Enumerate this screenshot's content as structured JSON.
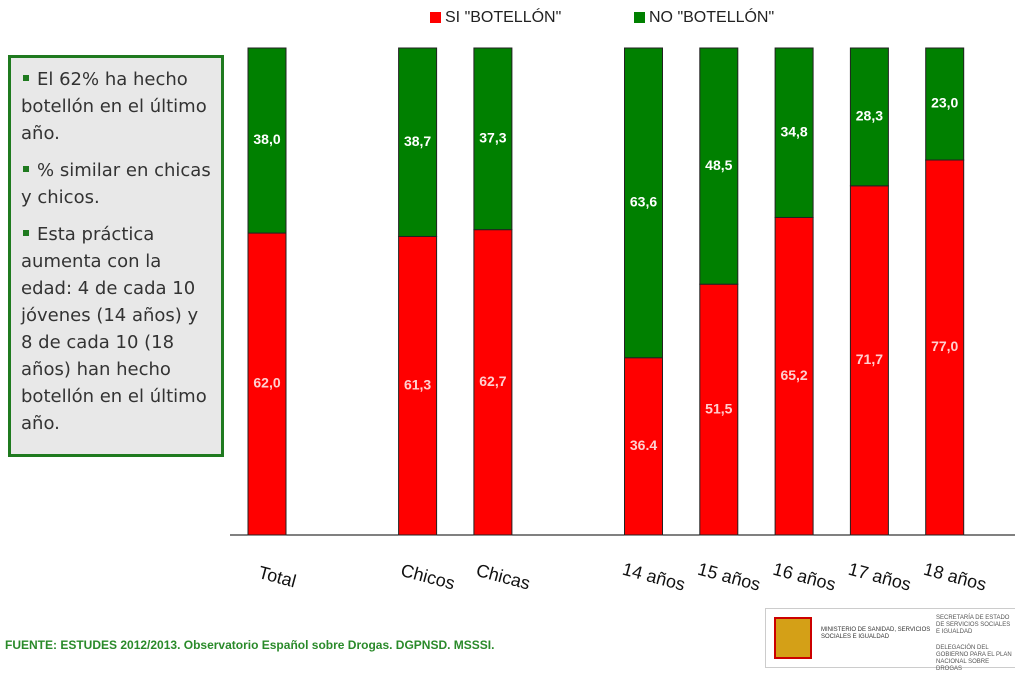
{
  "chart_data": {
    "type": "bar",
    "stacked": true,
    "categories": [
      "Total",
      null,
      "Chicos",
      "Chicas",
      null,
      "14 años",
      "15 años",
      "16 años",
      "17 años",
      "18 años"
    ],
    "series": [
      {
        "name": "SI \"BOTELLÓN\"",
        "color": "#ff0000",
        "values": [
          62.0,
          null,
          61.3,
          62.7,
          null,
          36.4,
          51.5,
          65.2,
          71.7,
          77.0
        ],
        "value_labels": [
          "62,0",
          null,
          "61,3",
          "62,7",
          null,
          "36.4",
          "51,5",
          "65,2",
          "71,7",
          "77,0"
        ]
      },
      {
        "name": "NO \"BOTELLÓN\"",
        "color": "#008000",
        "values": [
          38.0,
          null,
          38.7,
          37.3,
          null,
          63.6,
          48.5,
          34.8,
          28.3,
          23.0
        ],
        "value_labels": [
          "38,0",
          null,
          "38,7",
          "37,3",
          null,
          "63,6",
          "48,5",
          "34,8",
          "28,3",
          "23,0"
        ]
      }
    ],
    "ylim": [
      0,
      100
    ],
    "legend": "top"
  },
  "notes": [
    "El 62% ha hecho botellón en el último año.",
    "% similar en chicas y chicos.",
    "Esta práctica aumenta con la edad: 4 de cada 10 jóvenes (14 años) y 8 de cada 10 (18 años) han hecho botellón en el último año."
  ],
  "source": "FUENTE: ESTUDES 2012/2013. Observatorio Español sobre Drogas. DGPNSD. MSSSI.",
  "logo": {
    "ministry": "MINISTERIO DE SANIDAD, SERVICIOS SOCIALES E IGUALDAD",
    "secretary": "SECRETARÍA DE ESTADO DE SERVICIOS SOCIALES E IGUALDAD",
    "delegation": "DELEGACIÓN DEL GOBIERNO PARA EL PLAN NACIONAL SOBRE DROGAS"
  }
}
